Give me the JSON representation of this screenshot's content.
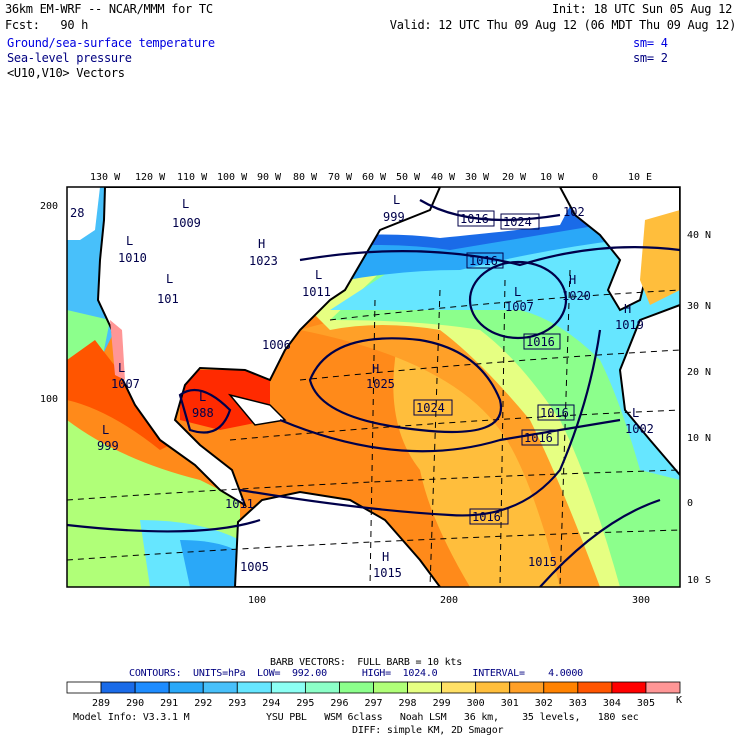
{
  "header": {
    "title": "36km EM-WRF -- NCAR/MMM for TC",
    "init": "Init: 18 UTC Sun 05 Aug 12",
    "fcst": "Fcst:   90 h",
    "valid": "Valid: 12 UTC Thu 09 Aug 12 (06 MDT Thu 09 Aug 12)",
    "field1": "Ground/sea-surface temperature",
    "field1_sm": "sm= 4",
    "field2": "Sea-level pressure",
    "field2_sm": "sm= 2",
    "field3": "<U10,V10> Vectors"
  },
  "axes": {
    "top_lon": [
      "130 W",
      "120 W",
      "110 W",
      "100 W",
      "90 W",
      "80 W",
      "70 W",
      "60 W",
      "50 W",
      "40 W",
      "30 W",
      "20 W",
      "10 W",
      "0",
      "10 E"
    ],
    "right_lat": [
      "40 N",
      "30 N",
      "20 N",
      "10 N",
      "0",
      "10 S"
    ],
    "left_grid": [
      "200",
      "100"
    ],
    "bottom_grid": [
      "100",
      "200",
      "300"
    ]
  },
  "map_labels": {
    "plain": [
      "28",
      "1009",
      "1010",
      "101",
      "1023",
      "1011",
      "999",
      "1006",
      "1007",
      "988",
      "999",
      "1011",
      "1005",
      "1015",
      "1015",
      "1025",
      "1007",
      "1020",
      "1019",
      "1002",
      "102"
    ],
    "boxed": [
      "1016",
      "1024",
      "1016",
      "1016",
      "1024",
      "1016",
      "1016",
      "1016"
    ],
    "centers": [
      "L",
      "L",
      "L",
      "H",
      "L",
      "L",
      "L",
      "L",
      "H",
      "L",
      "H",
      "L",
      "H",
      "H",
      "L"
    ]
  },
  "footer": {
    "barb": "BARB VECTORS:  FULL BARB = 10 kts",
    "contours": "CONTOURS:  UNITS=hPa  LOW=  992.00      HIGH=  1024.0      INTERVAL=    4.0000",
    "model": "Model Info: V3.3.1 M",
    "physics": "YSU PBL   WSM 6class   Noah LSM   36 km,    35 levels,   180 sec",
    "diff": "DIFF: simple KM, 2D Smagor",
    "unit": "K"
  },
  "colorbar": {
    "labels": [
      "289",
      "290",
      "291",
      "292",
      "293",
      "294",
      "295",
      "296",
      "297",
      "298",
      "299",
      "300",
      "301",
      "302",
      "303",
      "304",
      "305"
    ],
    "colors": [
      "#ffffff",
      "#1a6be8",
      "#1e8cff",
      "#2aa8f8",
      "#48c0fa",
      "#66e6ff",
      "#8cfff4",
      "#8cffc8",
      "#8cff8c",
      "#b0ff78",
      "#e6ff82",
      "#ffe066",
      "#ffbe3c",
      "#ffa028",
      "#ff8200",
      "#ff5500",
      "#ff0000",
      "#ff9696"
    ]
  },
  "colors": {
    "sst_warm": "#ff8a1a",
    "sst_mid": "#ffbe3c",
    "isobar": "#00004a",
    "label_blue": "#0000e0"
  }
}
